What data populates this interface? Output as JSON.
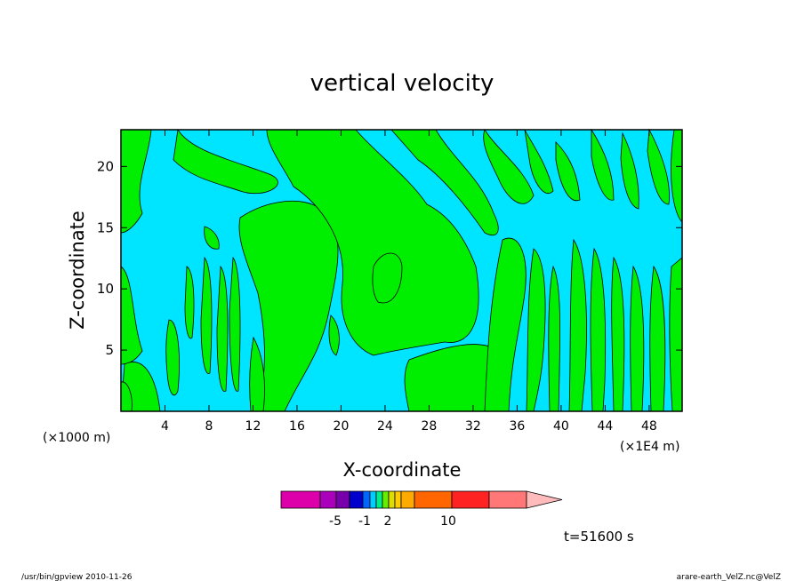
{
  "chart_data": {
    "type": "heatmap",
    "title": "vertical velocity",
    "xlabel": "X-coordinate",
    "ylabel": "Z-coordinate",
    "x_unit_left": "(×1000 m)",
    "x_unit_right": "(×1E4 m)",
    "xlim": [
      0,
      51
    ],
    "ylim": [
      0,
      23
    ],
    "x_ticks": [
      "4",
      "8",
      "12",
      "16",
      "20",
      "24",
      "28",
      "32",
      "36",
      "40",
      "44",
      "48"
    ],
    "y_ticks": [
      "5",
      "10",
      "15",
      "20"
    ],
    "time_label": "t=51600  s",
    "colorbar": {
      "labels": [
        "-5",
        "-1",
        "2",
        "10"
      ],
      "colors": [
        "#dd00aa",
        "#aa00bb",
        "#7700aa",
        "#0000cc",
        "#0066ff",
        "#00ccff",
        "#00ee88",
        "#66ee00",
        "#dddd00",
        "#ffcc00",
        "#ffaa00",
        "#ff6600",
        "#ff2222",
        "#ff7777",
        "#ffbbbb"
      ]
    },
    "field_colors": {
      "background": "#00e5ff",
      "positive": "#00ee00",
      "contour": "#000000"
    }
  },
  "footer": {
    "left": "/usr/bin/gpview   2010-11-26",
    "right": "arare-earth_VelZ.nc@VelZ"
  }
}
